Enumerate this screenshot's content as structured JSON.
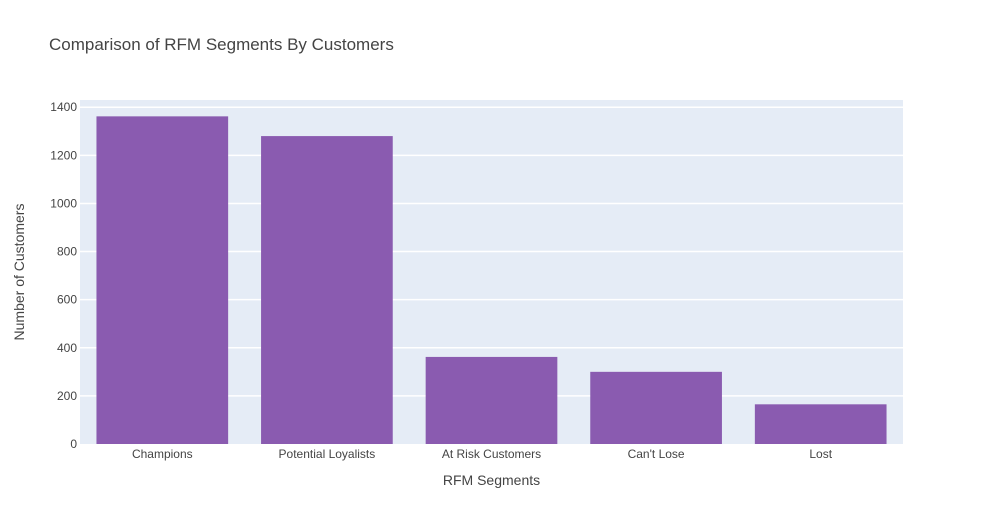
{
  "chart_data": {
    "type": "bar",
    "title": "Comparison of RFM Segments By Customers",
    "xlabel": "RFM Segments",
    "ylabel": "Number of Customers",
    "categories": [
      "Champions",
      "Potential Loyalists",
      "At Risk Customers",
      "Can't Lose",
      "Lost"
    ],
    "values": [
      1362,
      1280,
      362,
      300,
      165
    ],
    "ylim": [
      0,
      1430
    ],
    "yticks": [
      0,
      200,
      400,
      600,
      800,
      1000,
      1200,
      1400
    ],
    "grid": true,
    "legend": "none",
    "colors": {
      "bar": "#8a5bb0",
      "plot_background": "#e5ecf6",
      "gridline": "#ffffff",
      "text": "#444444"
    }
  }
}
